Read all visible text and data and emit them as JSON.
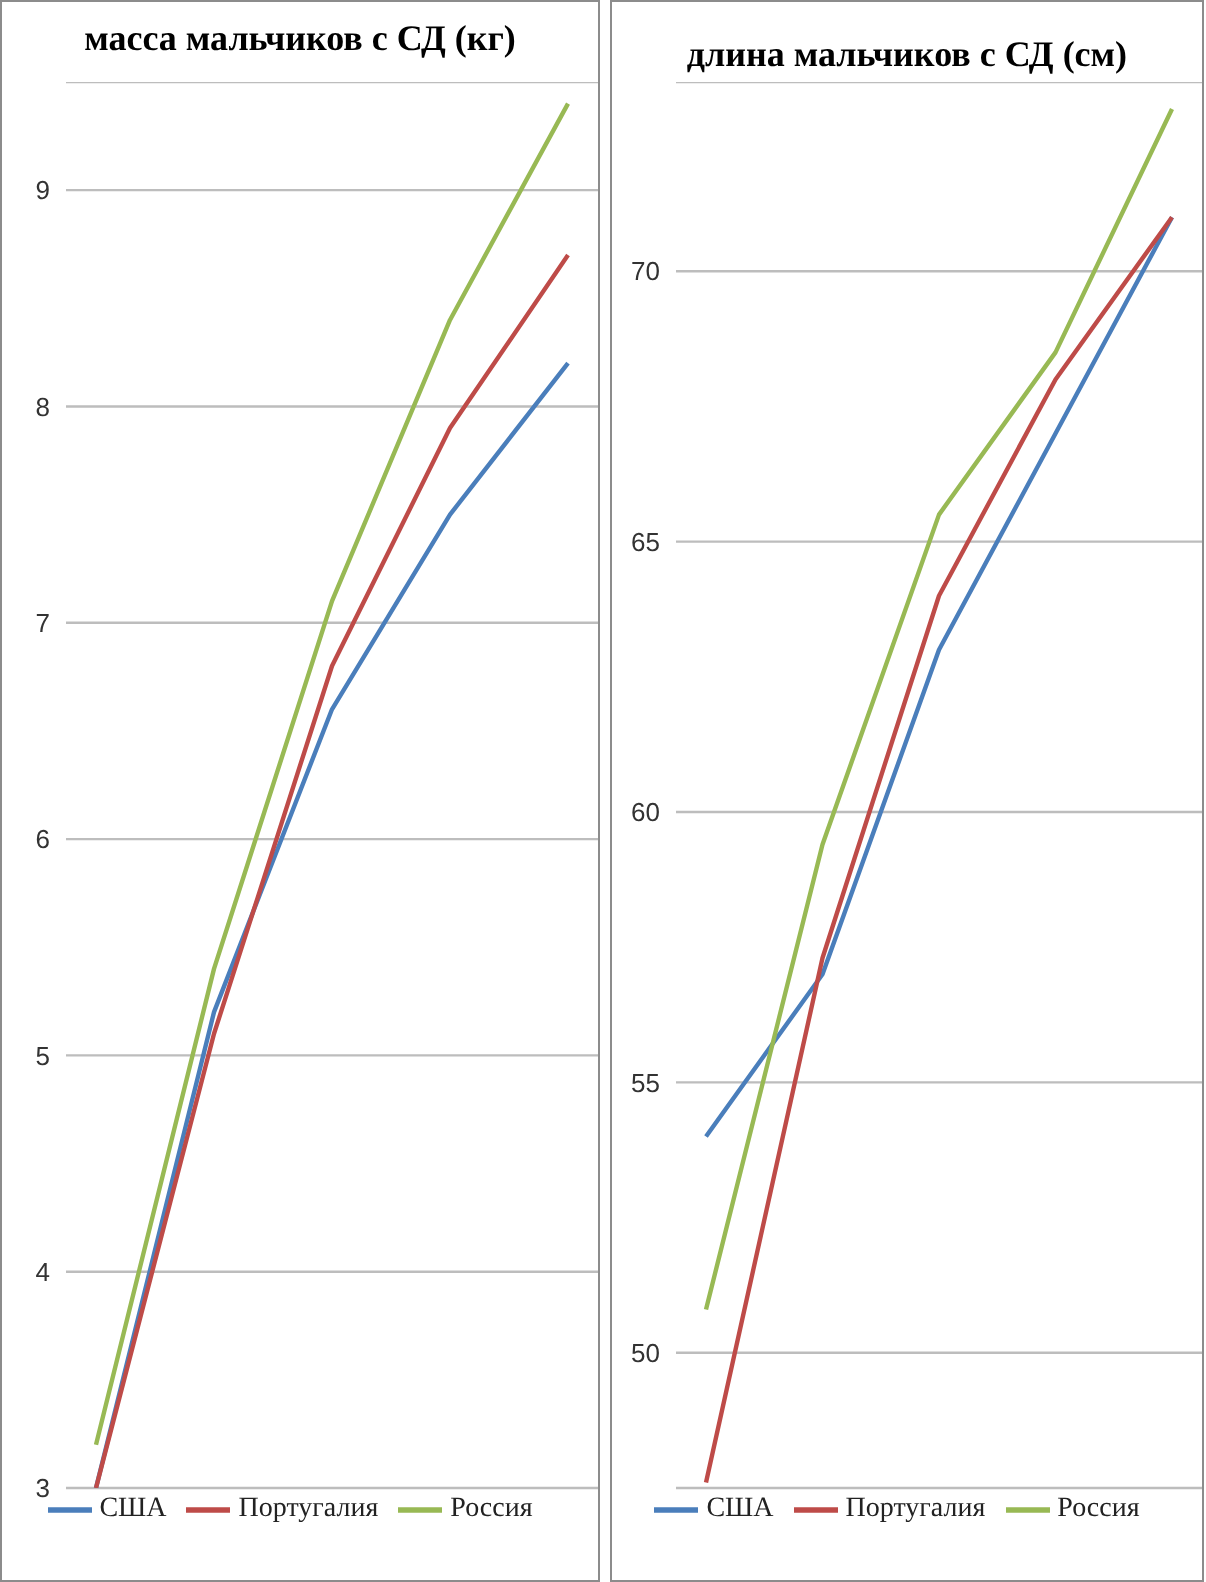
{
  "chart_data": [
    {
      "type": "line",
      "title": "масса мальчиков с СД (кг)",
      "categories": [
        null,
        null,
        null,
        null,
        null
      ],
      "series": [
        {
          "name": "США",
          "color": "#4a7ebb",
          "values": [
            3.0,
            5.2,
            6.6,
            7.5,
            8.2
          ]
        },
        {
          "name": "Португалия",
          "color": "#be4b48",
          "values": [
            3.0,
            5.1,
            6.8,
            7.9,
            8.7
          ]
        },
        {
          "name": "Россия",
          "color": "#98b954",
          "values": [
            3.2,
            5.4,
            7.1,
            8.4,
            9.4
          ]
        }
      ],
      "ylim": [
        3,
        9.5
      ],
      "yticks": [
        3,
        4,
        5,
        6,
        7,
        8,
        9
      ],
      "grid": "y",
      "legend": "bottom",
      "tick_labels": "y"
    },
    {
      "type": "line",
      "title": "длина мальчиков с СД (см)",
      "categories": [
        null,
        null,
        null,
        null,
        null
      ],
      "series": [
        {
          "name": "США",
          "color": "#4a7ebb",
          "values": [
            54.0,
            57.0,
            63.0,
            67.0,
            71.0
          ]
        },
        {
          "name": "Португалия",
          "color": "#be4b48",
          "values": [
            47.6,
            57.3,
            64.0,
            68.0,
            71.0
          ]
        },
        {
          "name": "Россия",
          "color": "#98b954",
          "values": [
            50.8,
            59.4,
            65.5,
            68.5,
            73.0
          ]
        }
      ],
      "ylim": [
        47.5,
        73.5
      ],
      "yticks": [
        50,
        55,
        60,
        65,
        70
      ],
      "grid": "y",
      "legend": "bottom",
      "tick_labels": "y"
    }
  ]
}
